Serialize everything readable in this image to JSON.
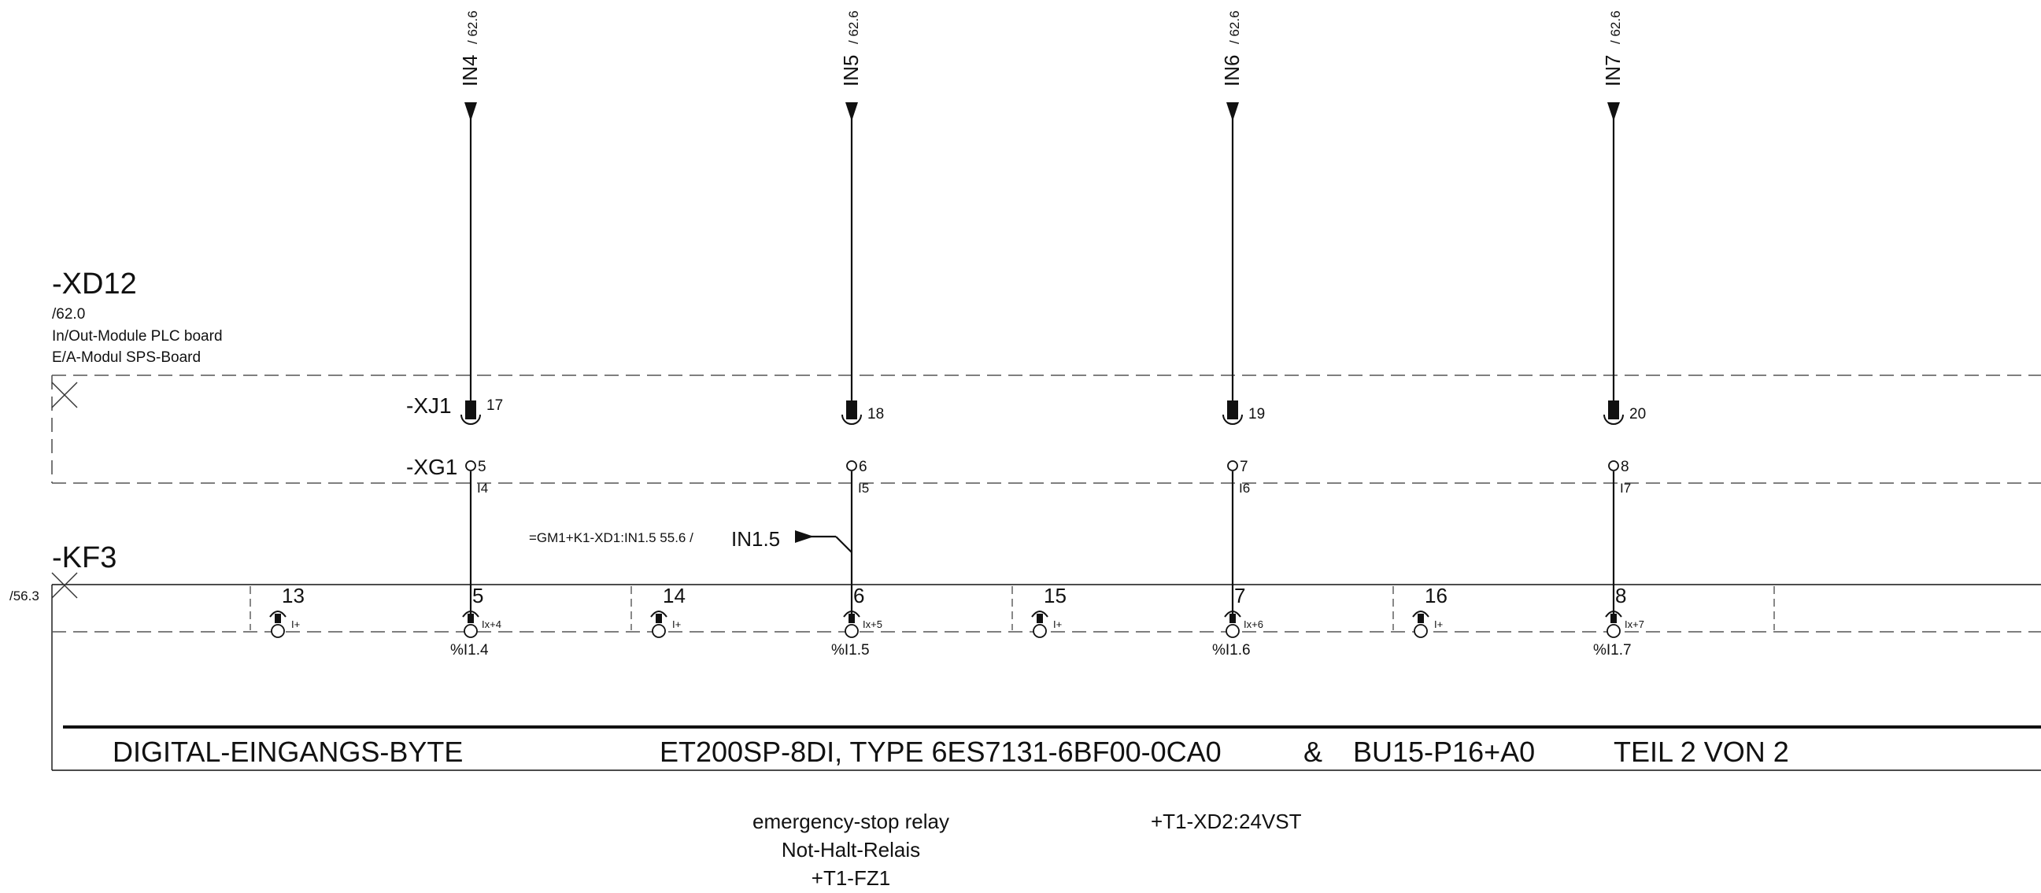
{
  "xd12": {
    "title": "-XD12",
    "ref": "/62.0",
    "desc_en": "In/Out-Module PLC board",
    "desc_de": "E/A-Modul SPS-Board",
    "xj1_label": "-XJ1",
    "xg1_label": "-XG1"
  },
  "kf3": {
    "title": "-KF3",
    "ref": "/56.3"
  },
  "channels": [
    {
      "signal": "IN4",
      "sheet": "/ 62.6",
      "xj_pin": "17",
      "xg_pin": "5",
      "sub": "I4",
      "term": "5",
      "ix": "Ix+4",
      "addr": "%I1.4",
      "iplus_term": "13",
      "iplus": "I+"
    },
    {
      "signal": "IN5",
      "sheet": "/ 62.6",
      "xj_pin": "18",
      "xg_pin": "6",
      "sub": "I5",
      "term": "6",
      "ix": "Ix+5",
      "addr": "%I1.5",
      "iplus_term": "14",
      "iplus": "I+"
    },
    {
      "signal": "IN6",
      "sheet": "/ 62.6",
      "xj_pin": "19",
      "xg_pin": "7",
      "sub": "I6",
      "term": "7",
      "ix": "Ix+6",
      "addr": "%I1.6",
      "iplus_term": "15",
      "iplus": "I+"
    },
    {
      "signal": "IN7",
      "sheet": "/ 62.6",
      "xj_pin": "20",
      "xg_pin": "8",
      "sub": "I7",
      "term": "8",
      "ix": "Ix+7",
      "addr": "%I1.7",
      "iplus_term": "16",
      "iplus": "I+"
    }
  ],
  "cross_ref": {
    "source": "=GM1+K1-XD1:IN1.5 55.6 /",
    "signal": "IN1.5"
  },
  "title_bar": {
    "left": "DIGITAL-EINGANGS-BYTE",
    "middle": "ET200SP-8DI, TYPE 6ES7131-6BF00-0CA0",
    "amp": "&",
    "bu": "BU15-P16+A0",
    "part": "TEIL 2 VON 2"
  },
  "footer": {
    "relay_en": "emergency-stop relay",
    "relay_de": "Not-Halt-Relais",
    "relay_loc": "+T1-FZ1",
    "supply": "+T1-XD2:24VST"
  },
  "colors": {
    "line": "#111111",
    "dash": "#555555",
    "background": "#ffffff"
  }
}
